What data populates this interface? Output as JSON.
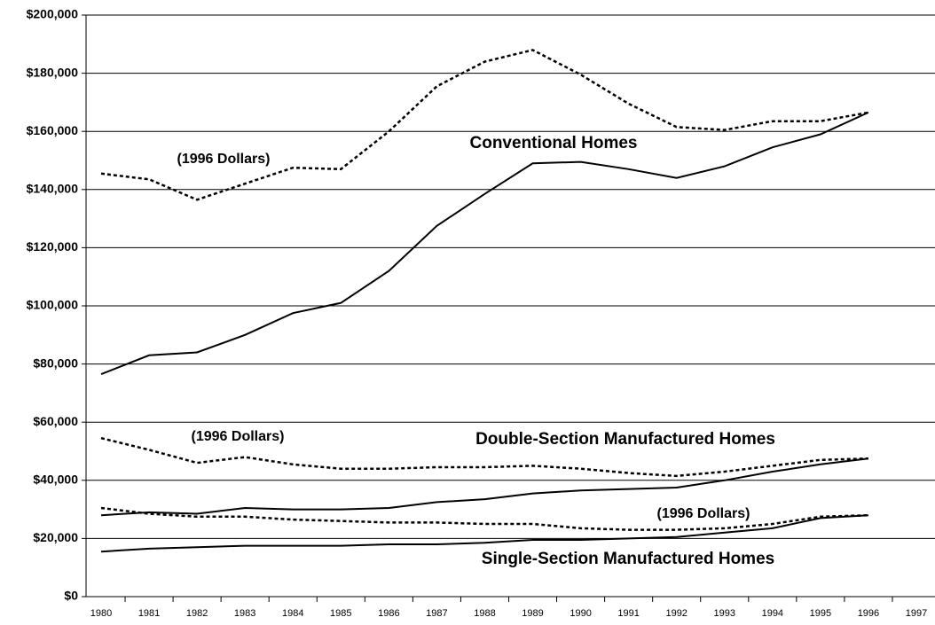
{
  "chart_data": {
    "type": "line",
    "categories": [
      "1980",
      "1981",
      "1982",
      "1983",
      "1984",
      "1985",
      "1986",
      "1987",
      "1988",
      "1989",
      "1990",
      "1991",
      "1992",
      "1993",
      "1994",
      "1995",
      "1996",
      "1997"
    ],
    "series": [
      {
        "style": "solid",
        "color": "#000000",
        "values": [
          76500,
          83000,
          84000,
          90000,
          97500,
          101000,
          112000,
          127500,
          138500,
          149000,
          149500,
          147000,
          144000,
          148000,
          154500,
          159000,
          166500,
          null
        ]
      },
      {
        "style": "dotted",
        "color": "#000000",
        "values": [
          145500,
          143500,
          136500,
          142000,
          147500,
          147000,
          160000,
          175500,
          184000,
          188000,
          179500,
          169500,
          161500,
          160500,
          163500,
          163500,
          166500,
          null
        ]
      },
      {
        "style": "solid",
        "color": "#000000",
        "values": [
          28000,
          29000,
          28500,
          30500,
          30000,
          30000,
          30500,
          32500,
          33500,
          35500,
          36500,
          37000,
          37500,
          40000,
          43000,
          45500,
          47500,
          null
        ]
      },
      {
        "style": "dotted",
        "color": "#000000",
        "values": [
          54500,
          50500,
          46000,
          48000,
          45500,
          44000,
          44000,
          44500,
          44500,
          45000,
          44000,
          42500,
          41500,
          43000,
          45000,
          47000,
          47500,
          null
        ]
      },
      {
        "style": "solid",
        "color": "#000000",
        "values": [
          15500,
          16500,
          17000,
          17500,
          17500,
          17500,
          18000,
          18000,
          18500,
          19500,
          19500,
          20000,
          20500,
          22000,
          23500,
          27000,
          28000,
          null
        ]
      },
      {
        "style": "dotted",
        "color": "#000000",
        "values": [
          30500,
          28500,
          27500,
          27500,
          26500,
          26000,
          25500,
          25500,
          25000,
          25000,
          23500,
          23000,
          23000,
          23500,
          25000,
          27500,
          28000,
          null
        ]
      }
    ],
    "annotations": [
      "(1996 Dollars)",
      "Conventional Homes",
      "(1996 Dollars)",
      "Double-Section Manufactured Homes",
      "(1996 Dollars)",
      "Single-Section Manufactured Homes"
    ],
    "ylim": [
      0,
      200000
    ],
    "yticks": [
      {
        "value": 0,
        "label": "$0"
      },
      {
        "value": 20000,
        "label": "$20,000"
      },
      {
        "value": 40000,
        "label": "$40,000"
      },
      {
        "value": 60000,
        "label": "$60,000"
      },
      {
        "value": 80000,
        "label": "$80,000"
      },
      {
        "value": 100000,
        "label": "$100,000"
      },
      {
        "value": 120000,
        "label": "$120,000"
      },
      {
        "value": 140000,
        "label": "$140,000"
      },
      {
        "value": 160000,
        "label": "$160,000"
      },
      {
        "value": 180000,
        "label": "$180,000"
      },
      {
        "value": 200000,
        "label": "$200,000"
      }
    ],
    "grid": true
  }
}
